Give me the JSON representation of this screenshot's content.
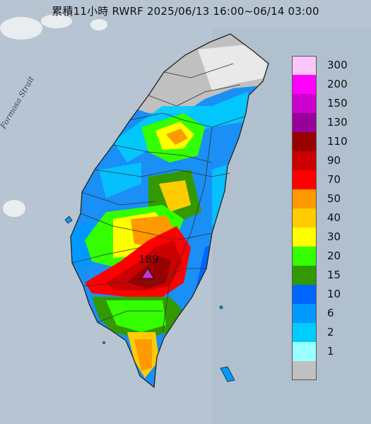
{
  "title": "累積11小時 RWRF 2025/06/13 16:00~06/14 03:00",
  "strait_label": "Formosa Strait",
  "peak": {
    "value": "189"
  },
  "legend": [
    {
      "label": "300",
      "color": "#fdc6fa"
    },
    {
      "label": "200",
      "color": "#ff00ff"
    },
    {
      "label": "150",
      "color": "#cc00cc"
    },
    {
      "label": "130",
      "color": "#990099"
    },
    {
      "label": "110",
      "color": "#990000"
    },
    {
      "label": "90",
      "color": "#cc0000"
    },
    {
      "label": "70",
      "color": "#ff0000"
    },
    {
      "label": "50",
      "color": "#ff9900"
    },
    {
      "label": "40",
      "color": "#ffcc00"
    },
    {
      "label": "30",
      "color": "#ffff00"
    },
    {
      "label": "20",
      "color": "#33ff00"
    },
    {
      "label": "15",
      "color": "#339900"
    },
    {
      "label": "10",
      "color": "#0066ff"
    },
    {
      "label": "6",
      "color": "#0099ff"
    },
    {
      "label": "2",
      "color": "#00ccff"
    },
    {
      "label": "1",
      "color": "#99ffff"
    },
    {
      "label": "",
      "color": "#c0c0c0"
    }
  ]
}
